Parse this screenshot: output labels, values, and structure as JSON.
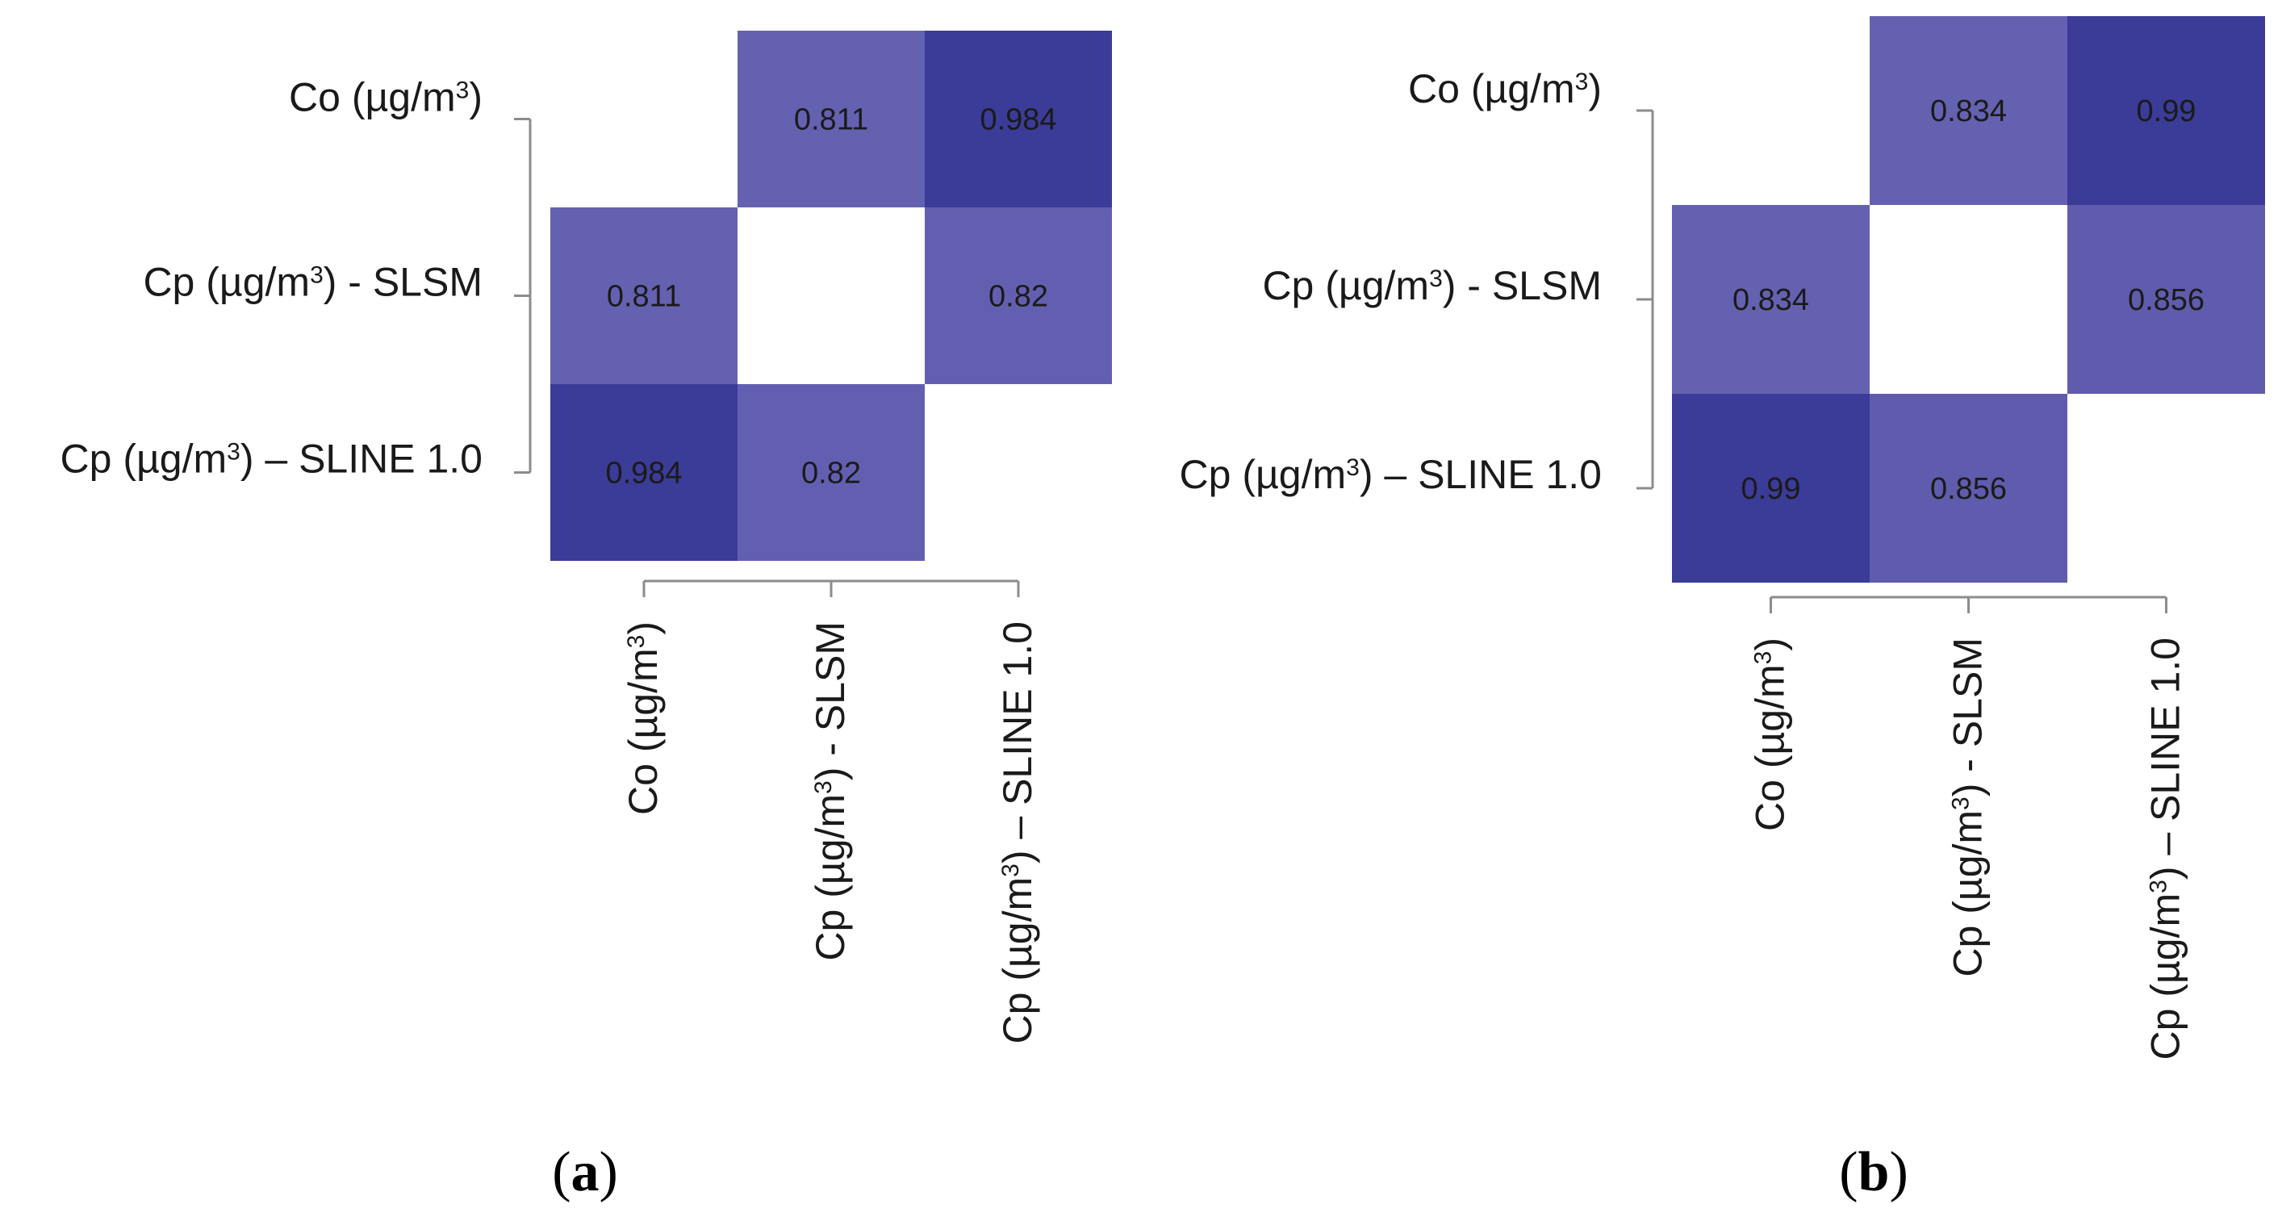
{
  "chart_data": [
    {
      "type": "heatmap",
      "panel_label": "a",
      "row_labels": [
        {
          "main": "Co (µg/m",
          "sup": "3",
          "tail": ")"
        },
        {
          "main": "Cp (µg/m",
          "sup": "3",
          "tail": ") - SLSM"
        },
        {
          "main": "Cp (µg/m",
          "sup": "3",
          "tail": ") – SLINE 1.0"
        }
      ],
      "col_labels": [
        {
          "main": "Co (µg/m",
          "sup": "3",
          "tail": ")"
        },
        {
          "main": "Cp (µg/m",
          "sup": "3",
          "tail": ") - SLSM"
        },
        {
          "main": "Cp (µg/m",
          "sup": "3",
          "tail": ") – SLINE 1.0"
        }
      ],
      "matrix": [
        [
          null,
          0.811,
          0.984
        ],
        [
          0.811,
          null,
          0.82
        ],
        [
          0.984,
          0.82,
          null
        ]
      ],
      "value_labels": [
        [
          "",
          "0.811",
          "0.984"
        ],
        [
          "0.811",
          "",
          "0.82"
        ],
        [
          "0.984",
          "0.82",
          ""
        ]
      ]
    },
    {
      "type": "heatmap",
      "panel_label": "b",
      "row_labels": [
        {
          "main": "Co (µg/m",
          "sup": "3",
          "tail": ")"
        },
        {
          "main": "Cp (µg/m",
          "sup": "3",
          "tail": ") - SLSM"
        },
        {
          "main": "Cp (µg/m",
          "sup": "3",
          "tail": ") – SLINE 1.0"
        }
      ],
      "col_labels": [
        {
          "main": "Co (µg/m",
          "sup": "3",
          "tail": ")"
        },
        {
          "main": "Cp (µg/m",
          "sup": "3",
          "tail": ") - SLSM"
        },
        {
          "main": "Cp (µg/m",
          "sup": "3",
          "tail": ") – SLINE 1.0"
        }
      ],
      "matrix": [
        [
          null,
          0.834,
          0.99
        ],
        [
          0.834,
          null,
          0.856
        ],
        [
          0.99,
          0.856,
          null
        ]
      ],
      "value_labels": [
        [
          "",
          "0.834",
          "0.99"
        ],
        [
          "0.834",
          "",
          "0.856"
        ],
        [
          "0.99",
          "0.856",
          ""
        ]
      ]
    }
  ],
  "colors": {
    "high": "#3b3b98",
    "low": "#6561b1",
    "axis": "#8c8c8c",
    "text": "#1a1a1a"
  }
}
